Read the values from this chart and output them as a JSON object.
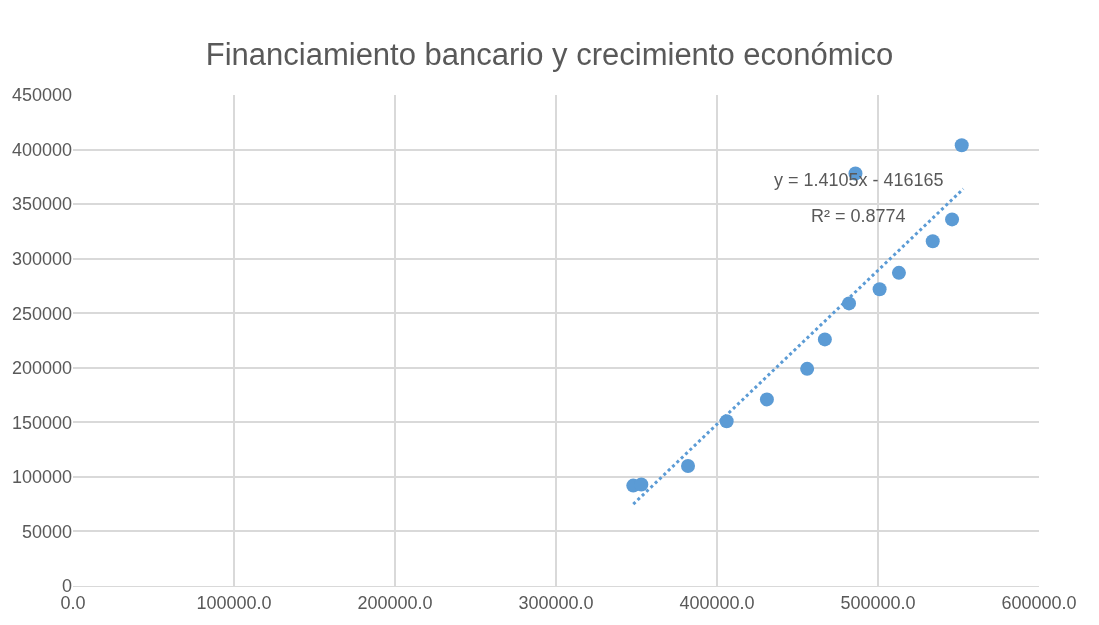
{
  "chart_data": {
    "type": "scatter",
    "title": "Financiamiento bancario y crecimiento económico",
    "series": [
      {
        "color": "#5b9bd5",
        "marker": "circle",
        "x": [
          348000,
          353000,
          382000,
          406000,
          431000,
          456000,
          467000,
          482000,
          501000,
          513000,
          534000,
          546000,
          486000,
          552000
        ],
        "values": [
          92000,
          93000,
          110000,
          151000,
          171000,
          199000,
          226000,
          259000,
          272000,
          287000,
          316000,
          336000,
          378000,
          404000
        ]
      },
      {
        "type": "line",
        "color": "#5b9bd5",
        "line_style": "dotted",
        "x": [
          348000,
          553000
        ],
        "values": [
          75000,
          364000
        ]
      }
    ],
    "annotations": [
      "y = 1.4105x - 416165",
      "R² = 0.8774"
    ],
    "xlim": [
      0,
      600000
    ],
    "xticks": [
      {
        "value": 0,
        "label": "0.0"
      },
      {
        "value": 100000,
        "label": "100000.0"
      },
      {
        "value": 200000,
        "label": "200000.0"
      },
      {
        "value": 300000,
        "label": "300000.0"
      },
      {
        "value": 400000,
        "label": "400000.0"
      },
      {
        "value": 500000,
        "label": "500000.0"
      },
      {
        "value": 600000,
        "label": "600000.0"
      }
    ],
    "ylim": [
      0,
      450000
    ],
    "yticks": [
      0,
      50000,
      100000,
      150000,
      200000,
      250000,
      300000,
      350000,
      400000,
      450000
    ],
    "grid": true
  }
}
